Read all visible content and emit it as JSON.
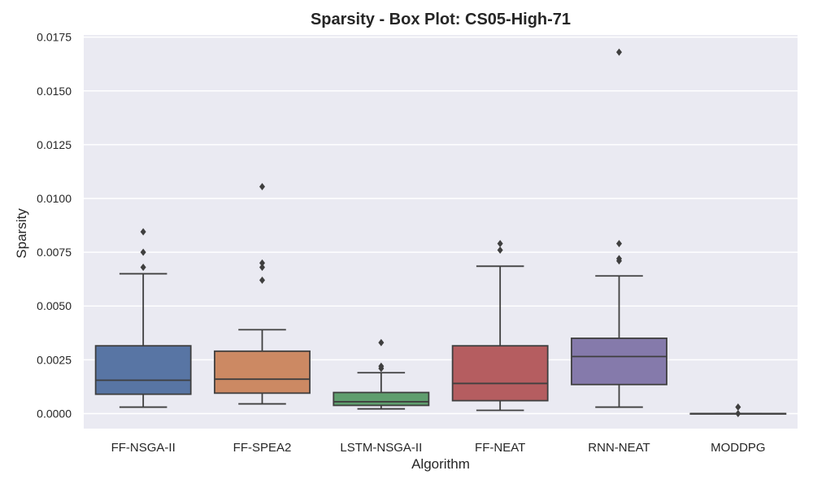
{
  "chart_data": {
    "type": "box",
    "title": "Sparsity - Box Plot: CS05-High-71",
    "xlabel": "Algorithm",
    "ylabel": "Sparsity",
    "ylim": [
      -0.0007,
      0.0176
    ],
    "yticks": [
      "0.0000",
      "0.0025",
      "0.0050",
      "0.0075",
      "0.0100",
      "0.0125",
      "0.0150",
      "0.0175"
    ],
    "grid": true,
    "background": "#eaeaf2",
    "categories": [
      "FF-NSGA-II",
      "FF-SPEA2",
      "LSTM-NSGA-II",
      "FF-NEAT",
      "RNN-NEAT",
      "MODDPG"
    ],
    "series": [
      {
        "category": "FF-NSGA-II",
        "color": "#5875a4",
        "whisker_low": 0.0003,
        "q1": 0.0009,
        "median": 0.00155,
        "q3": 0.00315,
        "whisker_high": 0.0065,
        "outliers": [
          0.0068,
          0.0075,
          0.00845
        ]
      },
      {
        "category": "FF-SPEA2",
        "color": "#cc8963",
        "whisker_low": 0.00045,
        "q1": 0.00095,
        "median": 0.0016,
        "q3": 0.0029,
        "whisker_high": 0.0039,
        "outliers": [
          0.0062,
          0.0068,
          0.007,
          0.01055
        ]
      },
      {
        "category": "LSTM-NSGA-II",
        "color": "#5f9e6e",
        "whisker_low": 0.00022,
        "q1": 0.00038,
        "median": 0.00055,
        "q3": 0.00098,
        "whisker_high": 0.0019,
        "outliers": [
          0.0021,
          0.0022,
          0.0033
        ]
      },
      {
        "category": "FF-NEAT",
        "color": "#b55d60",
        "whisker_low": 0.00015,
        "q1": 0.0006,
        "median": 0.0014,
        "q3": 0.00315,
        "whisker_high": 0.00685,
        "outliers": [
          0.0076,
          0.0079
        ]
      },
      {
        "category": "RNN-NEAT",
        "color": "#857aab",
        "whisker_low": 0.0003,
        "q1": 0.00135,
        "median": 0.00265,
        "q3": 0.0035,
        "whisker_high": 0.0064,
        "outliers": [
          0.0071,
          0.0072,
          0.0079,
          0.0168
        ]
      },
      {
        "category": "MODDPG",
        "color": "#8d7866",
        "whisker_low": 0.0,
        "q1": 0.0,
        "median": 0.0,
        "q3": 0.0,
        "whisker_high": 0.0,
        "outliers": [
          0.0,
          0.0003
        ]
      }
    ]
  }
}
